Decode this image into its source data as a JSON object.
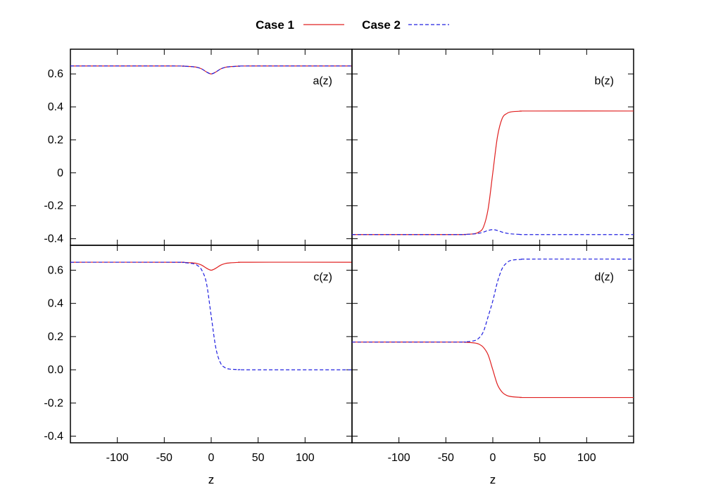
{
  "chart_data": {
    "type": "line",
    "legend": {
      "placement": "top-center",
      "entries": [
        {
          "name": "Case 1",
          "color": "#e02020",
          "dash": "solid"
        },
        {
          "name": "Case 2",
          "color": "#2020e0",
          "dash": "dashed"
        }
      ]
    },
    "xlim": [
      -150,
      150
    ],
    "xticks": [
      -100,
      -50,
      0,
      50,
      100
    ],
    "xtick_labels": [
      "-100",
      "-50",
      "0",
      "50",
      "100"
    ],
    "xlabel": "z",
    "panels": [
      {
        "id": "a",
        "label": "a(z)",
        "ylim": [
          -0.44,
          0.75
        ],
        "yticks": [
          0.6,
          0.4,
          0.2,
          0,
          -0.2,
          -0.4
        ],
        "ytick_labels": [
          "0.6",
          "0.4",
          "0.2",
          "0",
          "-0.2",
          "-0.4"
        ],
        "series": [
          {
            "name": "Case 1",
            "x": [
              -150,
              -40,
              -30,
              -20,
              -15,
              -10,
              -5,
              0,
              5,
              10,
              15,
              20,
              30,
              40,
              150
            ],
            "y": [
              0.648,
              0.648,
              0.647,
              0.644,
              0.64,
              0.63,
              0.612,
              0.6,
              0.612,
              0.63,
              0.64,
              0.644,
              0.647,
              0.648,
              0.648
            ]
          },
          {
            "name": "Case 2",
            "x": [
              -150,
              -40,
              -30,
              -20,
              -15,
              -10,
              -5,
              0,
              5,
              10,
              15,
              20,
              30,
              40,
              150
            ],
            "y": [
              0.648,
              0.648,
              0.647,
              0.644,
              0.64,
              0.63,
              0.612,
              0.6,
              0.612,
              0.63,
              0.64,
              0.644,
              0.647,
              0.648,
              0.648
            ]
          }
        ]
      },
      {
        "id": "b",
        "label": "b(z)",
        "ylim": [
          -0.44,
          0.75
        ],
        "yticks": [
          0.6,
          0.4,
          0.2,
          0,
          -0.2,
          -0.4
        ],
        "ytick_labels": [
          "0.6",
          "0.4",
          "0.2",
          "0",
          "-0.2",
          "-0.4"
        ],
        "series": [
          {
            "name": "Case 1",
            "x": [
              -150,
              -40,
              -30,
              -20,
              -15,
              -10,
              -5,
              0,
              5,
              10,
              15,
              20,
              30,
              40,
              150
            ],
            "y": [
              -0.375,
              -0.375,
              -0.374,
              -0.37,
              -0.36,
              -0.33,
              -0.22,
              0.0,
              0.22,
              0.33,
              0.36,
              0.37,
              0.374,
              0.375,
              0.375
            ]
          },
          {
            "name": "Case 2",
            "x": [
              -150,
              -40,
              -30,
              -20,
              -15,
              -10,
              -5,
              0,
              5,
              10,
              15,
              20,
              30,
              40,
              150
            ],
            "y": [
              -0.375,
              -0.375,
              -0.374,
              -0.371,
              -0.367,
              -0.36,
              -0.35,
              -0.345,
              -0.35,
              -0.36,
              -0.367,
              -0.371,
              -0.374,
              -0.375,
              -0.375
            ]
          }
        ]
      },
      {
        "id": "c",
        "label": "c(z)",
        "ylim": [
          -0.44,
          0.75
        ],
        "yticks": [
          0.6,
          0.4,
          0.2,
          0.0,
          -0.2,
          -0.4
        ],
        "ytick_labels": [
          "0.6",
          "0.4",
          "0.2",
          "0.0",
          "-0.2",
          "-0.4"
        ],
        "series": [
          {
            "name": "Case 1",
            "x": [
              -150,
              -40,
              -30,
              -20,
              -15,
              -10,
              -5,
              0,
              5,
              10,
              15,
              20,
              30,
              40,
              150
            ],
            "y": [
              0.648,
              0.648,
              0.647,
              0.644,
              0.64,
              0.63,
              0.612,
              0.6,
              0.612,
              0.63,
              0.64,
              0.644,
              0.647,
              0.648,
              0.648
            ]
          },
          {
            "name": "Case 2",
            "x": [
              -150,
              -40,
              -30,
              -20,
              -15,
              -10,
              -5,
              0,
              5,
              10,
              15,
              20,
              30,
              40,
              150
            ],
            "y": [
              0.648,
              0.648,
              0.646,
              0.64,
              0.63,
              0.6,
              0.52,
              0.324,
              0.13,
              0.04,
              0.012,
              0.004,
              0.001,
              0.0,
              0.0
            ]
          }
        ]
      },
      {
        "id": "d",
        "label": "d(z)",
        "ylim": [
          -0.44,
          0.75
        ],
        "yticks": [
          0.6,
          0.4,
          0.2,
          0.0,
          -0.2,
          -0.4
        ],
        "ytick_labels": [
          "0.6",
          "0.4",
          "0.2",
          "0.0",
          "-0.2",
          "-0.4"
        ],
        "series": [
          {
            "name": "Case 1",
            "x": [
              -150,
              -40,
              -30,
              -20,
              -15,
              -10,
              -5,
              0,
              5,
              10,
              15,
              20,
              30,
              40,
              150
            ],
            "y": [
              0.167,
              0.167,
              0.166,
              0.162,
              0.155,
              0.135,
              0.09,
              0.0,
              -0.09,
              -0.135,
              -0.155,
              -0.162,
              -0.166,
              -0.167,
              -0.167
            ]
          },
          {
            "name": "Case 2",
            "x": [
              -150,
              -40,
              -30,
              -20,
              -15,
              -10,
              -5,
              0,
              5,
              10,
              15,
              20,
              30,
              40,
              150
            ],
            "y": [
              0.167,
              0.167,
              0.168,
              0.175,
              0.19,
              0.23,
              0.32,
              0.415,
              0.53,
              0.61,
              0.645,
              0.66,
              0.665,
              0.667,
              0.667
            ]
          }
        ]
      }
    ]
  }
}
